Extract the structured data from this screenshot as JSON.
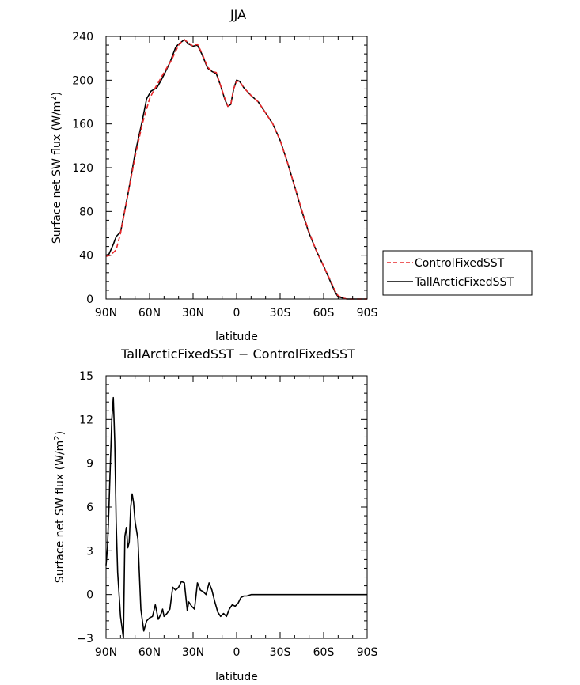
{
  "chart_data": [
    {
      "type": "line",
      "title": "JJA",
      "xlabel": "latitude",
      "ylabel": "Surface net SW flux (W/m",
      "ylabel_sup": "2",
      "ylabel_tail": ")",
      "xlim": [
        90,
        -90
      ],
      "ylim": [
        0,
        240
      ],
      "x_ticks": [
        90,
        60,
        30,
        0,
        -30,
        -60,
        -90
      ],
      "x_tick_labels": [
        "90N",
        "60N",
        "30N",
        "0",
        "30S",
        "60S",
        "90S"
      ],
      "y_ticks": [
        0,
        40,
        80,
        120,
        160,
        200,
        240
      ],
      "y_tick_labels": [
        "0",
        "40",
        "80",
        "120",
        "160",
        "200",
        "240"
      ],
      "legend": {
        "position": "right",
        "entries": [
          "ControlFixedSST",
          "TallArcticFixedSST"
        ]
      },
      "series": [
        {
          "name": "ControlFixedSST",
          "color": "#e8282b",
          "dash": "dashed",
          "points": [
            [
              90,
              39
            ],
            [
              87,
              40
            ],
            [
              83,
              45
            ],
            [
              80,
              60
            ],
            [
              75,
              95
            ],
            [
              70,
              130
            ],
            [
              65,
              160
            ],
            [
              60,
              183
            ],
            [
              57,
              191
            ],
            [
              53,
              200
            ],
            [
              50,
              207
            ],
            [
              45,
              218
            ],
            [
              40,
              232
            ],
            [
              38,
              235
            ],
            [
              36,
              237
            ],
            [
              33,
              234
            ],
            [
              30,
              231
            ],
            [
              27,
              233
            ],
            [
              24,
              225
            ],
            [
              20,
              212
            ],
            [
              17,
              208
            ],
            [
              14,
              207
            ],
            [
              11,
              195
            ],
            [
              8,
              183
            ],
            [
              6,
              176
            ],
            [
              4,
              178
            ],
            [
              2,
              192
            ],
            [
              0,
              199
            ],
            [
              -2,
              199
            ],
            [
              -5,
              193
            ],
            [
              -10,
              186
            ],
            [
              -15,
              180
            ],
            [
              -20,
              170
            ],
            [
              -25,
              160
            ],
            [
              -30,
              145
            ],
            [
              -35,
              125
            ],
            [
              -40,
              103
            ],
            [
              -45,
              81
            ],
            [
              -50,
              61
            ],
            [
              -55,
              44
            ],
            [
              -60,
              30
            ],
            [
              -65,
              16
            ],
            [
              -68,
              7
            ],
            [
              -70,
              3
            ],
            [
              -73,
              1
            ],
            [
              -76,
              0
            ],
            [
              -80,
              0
            ],
            [
              -85,
              0
            ],
            [
              -90,
              0
            ]
          ]
        },
        {
          "name": "TallArcticFixedSST",
          "color": "#000000",
          "dash": "solid",
          "points": [
            [
              90,
              40
            ],
            [
              88,
              41
            ],
            [
              85,
              50
            ],
            [
              83,
              57
            ],
            [
              81,
              60
            ],
            [
              80,
              61
            ],
            [
              75,
              95
            ],
            [
              70,
              133
            ],
            [
              65,
              163
            ],
            [
              62,
              183
            ],
            [
              59,
              190
            ],
            [
              55,
              193
            ],
            [
              52,
              200
            ],
            [
              50,
              205
            ],
            [
              46,
              216
            ],
            [
              42,
              230
            ],
            [
              40,
              233
            ],
            [
              36,
              237
            ],
            [
              33,
              233
            ],
            [
              30,
              231
            ],
            [
              27,
              232
            ],
            [
              24,
              224
            ],
            [
              20,
              211
            ],
            [
              17,
              208
            ],
            [
              14,
              206
            ],
            [
              11,
              195
            ],
            [
              8,
              182
            ],
            [
              6,
              176
            ],
            [
              4,
              178
            ],
            [
              2,
              192
            ],
            [
              0,
              200
            ],
            [
              -2,
              199
            ],
            [
              -5,
              193
            ],
            [
              -10,
              186
            ],
            [
              -15,
              180
            ],
            [
              -20,
              170
            ],
            [
              -25,
              160
            ],
            [
              -30,
              145
            ],
            [
              -35,
              125
            ],
            [
              -40,
              103
            ],
            [
              -45,
              80
            ],
            [
              -50,
              60
            ],
            [
              -55,
              44
            ],
            [
              -60,
              30
            ],
            [
              -65,
              15
            ],
            [
              -68,
              6
            ],
            [
              -70,
              2
            ],
            [
              -73,
              1
            ],
            [
              -76,
              0
            ],
            [
              -80,
              0
            ],
            [
              -85,
              0
            ],
            [
              -90,
              0
            ]
          ]
        }
      ]
    },
    {
      "type": "line",
      "title": "TallArcticFixedSST − ControlFixedSST",
      "xlabel": "latitude",
      "ylabel": "Surface net SW flux (W/m",
      "ylabel_sup": "2",
      "ylabel_tail": ")",
      "xlim": [
        90,
        -90
      ],
      "ylim": [
        -3,
        15
      ],
      "x_ticks": [
        90,
        60,
        30,
        0,
        -30,
        -60,
        -90
      ],
      "x_tick_labels": [
        "90N",
        "60N",
        "30N",
        "0",
        "30S",
        "60S",
        "90S"
      ],
      "y_ticks": [
        -3,
        0,
        3,
        6,
        9,
        12,
        15
      ],
      "y_tick_labels": [
        "−3",
        "0",
        "3",
        "6",
        "9",
        "12",
        "15"
      ],
      "series": [
        {
          "name": "TallArcticFixedSST − ControlFixedSST",
          "color": "#000000",
          "dash": "solid",
          "points": [
            [
              90,
              2
            ],
            [
              89,
              3.2
            ],
            [
              88,
              6
            ],
            [
              86,
              12
            ],
            [
              85,
              13.5
            ],
            [
              84,
              10.5
            ],
            [
              83,
              5
            ],
            [
              82,
              1.5
            ],
            [
              80,
              -1.5
            ],
            [
              78,
              -3
            ],
            [
              77,
              4
            ],
            [
              76,
              4.6
            ],
            [
              75,
              3.2
            ],
            [
              74,
              3.6
            ],
            [
              73,
              6
            ],
            [
              72,
              6.9
            ],
            [
              71,
              6.3
            ],
            [
              70,
              5
            ],
            [
              68,
              3.8
            ],
            [
              66,
              -1
            ],
            [
              64,
              -2.5
            ],
            [
              62,
              -1.8
            ],
            [
              60,
              -1.6
            ],
            [
              58,
              -1.5
            ],
            [
              56,
              -0.7
            ],
            [
              54,
              -1.7
            ],
            [
              52,
              -1.3
            ],
            [
              51,
              -1
            ],
            [
              50,
              -1.5
            ],
            [
              48,
              -1.3
            ],
            [
              46,
              -1
            ],
            [
              44,
              0.5
            ],
            [
              42,
              0.3
            ],
            [
              40,
              0.5
            ],
            [
              38,
              0.9
            ],
            [
              36,
              0.8
            ],
            [
              34,
              -1.1
            ],
            [
              33,
              -0.5
            ],
            [
              31,
              -0.8
            ],
            [
              29,
              -1
            ],
            [
              27,
              0.8
            ],
            [
              25,
              0.3
            ],
            [
              23,
              0.2
            ],
            [
              21,
              0
            ],
            [
              19,
              0.8
            ],
            [
              17,
              0.3
            ],
            [
              15,
              -0.5
            ],
            [
              13,
              -1.2
            ],
            [
              11,
              -1.5
            ],
            [
              9,
              -1.3
            ],
            [
              7,
              -1.5
            ],
            [
              5,
              -1
            ],
            [
              3,
              -0.7
            ],
            [
              1,
              -0.8
            ],
            [
              -1,
              -0.6
            ],
            [
              -3,
              -0.2
            ],
            [
              -5,
              -0.1
            ],
            [
              -7,
              -0.1
            ],
            [
              -10,
              0
            ],
            [
              -15,
              0
            ],
            [
              -20,
              0
            ],
            [
              -30,
              0
            ],
            [
              -40,
              0
            ],
            [
              -50,
              0
            ],
            [
              -60,
              0
            ],
            [
              -70,
              0
            ],
            [
              -80,
              0
            ],
            [
              -90,
              0
            ]
          ]
        }
      ]
    }
  ]
}
